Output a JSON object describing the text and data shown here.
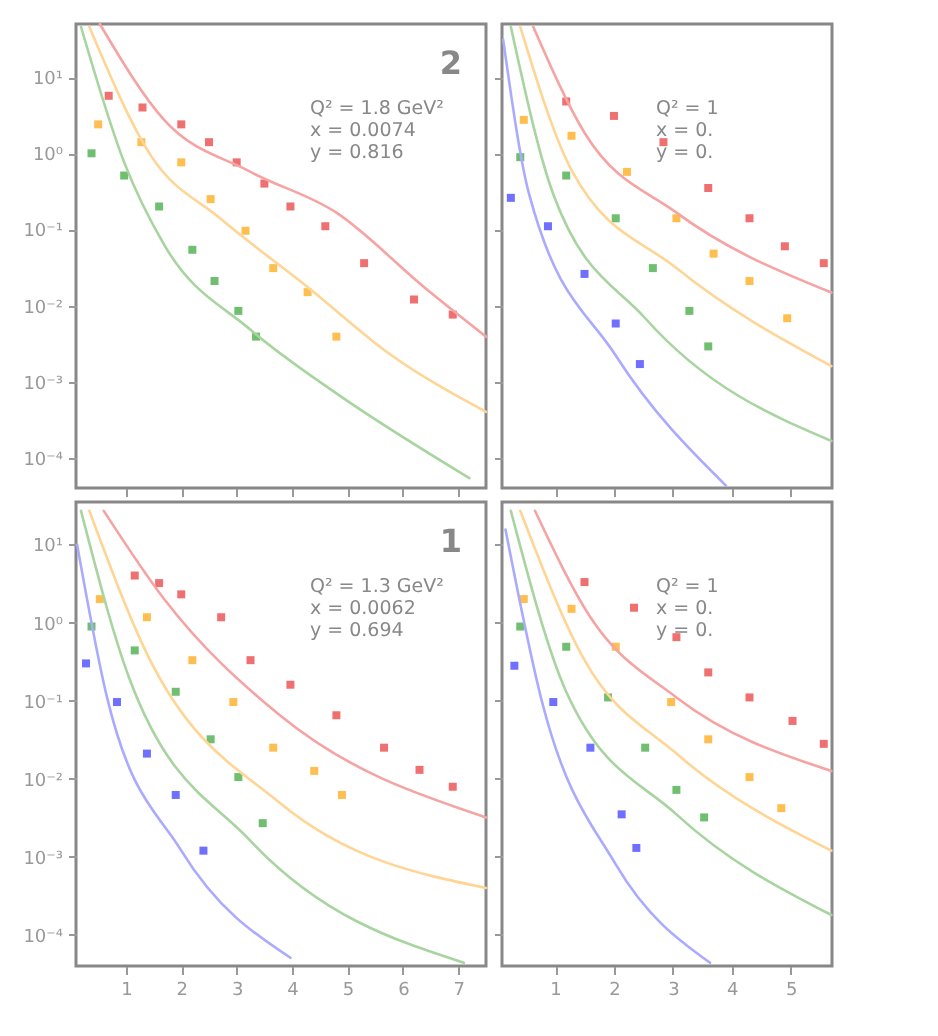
{
  "chart_data": [
    {
      "type": "scatter",
      "log": true,
      "tick_labels": "y",
      "xlim": [
        0.1,
        7.5
      ],
      "xticks": [
        {
          "value": 1,
          "label": null
        },
        {
          "value": 2,
          "label": null
        },
        {
          "value": 3,
          "label": null
        },
        {
          "value": 4,
          "label": null
        },
        {
          "value": 5,
          "label": null
        },
        {
          "value": 6,
          "label": null
        },
        {
          "value": 7,
          "label": null
        }
      ],
      "ylim": [
        4e-05,
        50
      ],
      "yticks": [
        {
          "value": 10,
          "label": "10¹"
        },
        {
          "value": 1,
          "label": "10⁰"
        },
        {
          "value": 0.1,
          "label": "10⁻¹"
        },
        {
          "value": 0.01,
          "label": "10⁻²"
        },
        {
          "value": 0.001,
          "label": "10⁻³"
        },
        {
          "value": 0.0001,
          "label": "10⁻⁴"
        }
      ],
      "annotations": [
        "2",
        "Q² = 1.8 GeV²",
        "x = 0.0074",
        "y = 0.816"
      ],
      "series": [
        {
          "marker": "square",
          "color": "#ef7070",
          "x": [
            0.69,
            1.3,
            2.0,
            2.5,
            3.0,
            3.5,
            3.97,
            4.6,
            5.3,
            6.2,
            6.9
          ],
          "values": [
            5.7,
            4.0,
            2.4,
            1.4,
            0.76,
            0.4,
            0.2,
            0.11,
            0.036,
            0.012,
            0.0076
          ]
        },
        {
          "marker": "square",
          "color": "#ffbf50",
          "x": [
            0.5,
            1.28,
            2.0,
            2.53,
            3.16,
            3.66,
            4.28,
            4.8
          ],
          "values": [
            2.4,
            1.4,
            0.76,
            0.25,
            0.096,
            0.031,
            0.015,
            0.0039
          ]
        },
        {
          "marker": "square",
          "color": "#70bf70",
          "x": [
            0.38,
            0.97,
            1.6,
            2.2,
            2.6,
            3.03,
            3.35
          ],
          "values": [
            1.0,
            0.51,
            0.2,
            0.054,
            0.021,
            0.0085,
            0.0039
          ]
        },
        {
          "type": "line",
          "color": "#f5a3a3",
          "x": [
            0.53,
            1.69,
            3.25,
            4.8,
            6.4,
            7.5
          ],
          "values": [
            50,
            2.75,
            0.57,
            0.166,
            0.017,
            0.0039
          ]
        },
        {
          "type": "line",
          "color": "#ffd595",
          "x": [
            0.34,
            1.47,
            2.7,
            4.3,
            5.8,
            7.5
          ],
          "values": [
            46,
            0.89,
            0.14,
            0.017,
            0.0022,
            0.0004
          ]
        },
        {
          "type": "line",
          "color": "#a8d4a0",
          "x": [
            0.19,
            0.97,
            1.69,
            3.25,
            4.8,
            7.2
          ],
          "values": [
            46,
            0.76,
            0.063,
            0.0048,
            0.0007,
            5.4e-05
          ]
        }
      ]
    },
    {
      "type": "scatter",
      "log": true,
      "tick_labels": false,
      "xlim": [
        0.1,
        5.7
      ],
      "xticks": [
        {
          "value": 1,
          "label": null
        },
        {
          "value": 2,
          "label": null
        },
        {
          "value": 3,
          "label": null
        },
        {
          "value": 4,
          "label": null
        },
        {
          "value": 5,
          "label": null
        }
      ],
      "ylim": [
        4e-05,
        50
      ],
      "yticks": [
        {
          "value": 10,
          "label": null
        },
        {
          "value": 1,
          "label": null
        },
        {
          "value": 0.1,
          "label": null
        },
        {
          "value": 0.01,
          "label": null
        },
        {
          "value": 0.001,
          "label": null
        },
        {
          "value": 0.0001,
          "label": null
        }
      ],
      "annotations": [
        "Q² = 1",
        "x = 0.",
        "y = 0."
      ],
      "series": [
        {
          "marker": "square",
          "color": "#ef7070",
          "x": [
            1.19,
            2.0,
            2.84,
            3.6,
            4.3,
            4.9,
            5.56
          ],
          "values": [
            4.8,
            3.1,
            1.4,
            0.35,
            0.14,
            0.06,
            0.036
          ]
        },
        {
          "marker": "square",
          "color": "#ffbf50",
          "x": [
            0.47,
            1.28,
            2.22,
            3.06,
            3.69,
            4.3,
            4.94
          ],
          "values": [
            2.75,
            1.7,
            0.57,
            0.14,
            0.048,
            0.021,
            0.0068
          ]
        },
        {
          "marker": "square",
          "color": "#70bf70",
          "x": [
            0.41,
            1.19,
            2.03,
            2.66,
            3.28,
            3.6
          ],
          "values": [
            0.89,
            0.51,
            0.14,
            0.031,
            0.0085,
            0.0029
          ]
        },
        {
          "marker": "square",
          "color": "#7070ff",
          "x": [
            0.25,
            0.88,
            1.5,
            2.03,
            2.44
          ],
          "values": [
            0.26,
            0.11,
            0.026,
            0.0058,
            0.0017
          ]
        },
        {
          "type": "line",
          "color": "#f5a3a3",
          "x": [
            0.63,
            1.5,
            3.06,
            5.69
          ],
          "values": [
            46,
            1.86,
            0.166,
            0.0148
          ]
        },
        {
          "type": "line",
          "color": "#ffd595",
          "x": [
            0.41,
            1.28,
            3.06,
            5.69
          ],
          "values": [
            46,
            0.6,
            0.031,
            0.0016
          ]
        },
        {
          "type": "line",
          "color": "#a8d4a0",
          "x": [
            0.25,
            0.97,
            2.53,
            5.69
          ],
          "values": [
            46,
            0.29,
            0.0068,
            0.000166
          ]
        },
        {
          "type": "line",
          "color": "#aaaaff",
          "x": [
            0.12,
            0.56,
            2.03,
            3.9
          ],
          "values": [
            31,
            0.29,
            0.0022,
            4.3e-05
          ]
        }
      ]
    },
    {
      "type": "scatter",
      "log": true,
      "xlim": [
        0.1,
        7.5
      ],
      "xticks": [
        1,
        2,
        3,
        4,
        5,
        6,
        7
      ],
      "ylim": [
        4e-05,
        35
      ],
      "yticks": [
        {
          "value": 10,
          "label": "10¹"
        },
        {
          "value": 1,
          "label": "10⁰"
        },
        {
          "value": 0.1,
          "label": "10⁻¹"
        },
        {
          "value": 0.01,
          "label": "10⁻²"
        },
        {
          "value": 0.001,
          "label": "10⁻³"
        },
        {
          "value": 0.0001,
          "label": "10⁻⁴"
        }
      ],
      "annotations": [
        "1",
        "Q² = 1.3 GeV²",
        "x = 0.0062",
        "y = 0.694"
      ],
      "series": [
        {
          "marker": "square",
          "color": "#ef7070",
          "x": [
            1.16,
            1.6,
            2.0,
            2.72,
            3.25,
            3.97,
            4.8,
            5.66,
            6.3,
            6.9
          ],
          "values": [
            4.0,
            3.2,
            2.3,
            1.17,
            0.33,
            0.16,
            0.065,
            0.025,
            0.013,
            0.0079
          ]
        },
        {
          "marker": "square",
          "color": "#ffbf50",
          "x": [
            0.53,
            1.38,
            2.2,
            2.94,
            3.66,
            4.4,
            4.9
          ],
          "values": [
            2.0,
            1.17,
            0.33,
            0.096,
            0.025,
            0.0126,
            0.0062
          ]
        },
        {
          "marker": "square",
          "color": "#70bf70",
          "x": [
            0.38,
            1.16,
            1.9,
            2.53,
            3.03,
            3.47
          ],
          "values": [
            0.89,
            0.44,
            0.13,
            0.032,
            0.0105,
            0.0027
          ]
        },
        {
          "marker": "square",
          "color": "#7070ff",
          "x": [
            0.28,
            0.84,
            1.38,
            1.9,
            2.4
          ],
          "values": [
            0.3,
            0.096,
            0.021,
            0.0062,
            0.0012
          ]
        },
        {
          "type": "line",
          "color": "#f5a3a3",
          "x": [
            0.6,
            1.69,
            3.78,
            7.5
          ],
          "values": [
            27,
            2.0,
            0.065,
            0.0032
          ]
        },
        {
          "type": "line",
          "color": "#ffd595",
          "x": [
            0.34,
            1.38,
            3.78,
            7.5
          ],
          "values": [
            27,
            0.4,
            0.0049,
            0.0004
          ]
        },
        {
          "type": "line",
          "color": "#a8d4a0",
          "x": [
            0.19,
            1.06,
            3.25,
            7.1
          ],
          "values": [
            27,
            0.195,
            0.0016,
            4.4e-05
          ]
        },
        {
          "type": "line",
          "color": "#aaaaff",
          "x": [
            0.12,
            0.66,
            2.0,
            3.97
          ],
          "values": [
            10,
            0.11,
            0.0012,
            5.1e-05
          ]
        }
      ]
    },
    {
      "type": "scatter",
      "log": true,
      "tick_labels": "x",
      "xlim": [
        0.1,
        5.7
      ],
      "xticks": [
        1,
        2,
        3,
        4,
        5
      ],
      "ylim": [
        4e-05,
        35
      ],
      "yticks": [
        {
          "value": 10,
          "label": null
        },
        {
          "value": 1,
          "label": null
        },
        {
          "value": 0.1,
          "label": null
        },
        {
          "value": 0.01,
          "label": null
        },
        {
          "value": 0.001,
          "label": null
        },
        {
          "value": 0.0001,
          "label": null
        }
      ],
      "annotations": [
        "Q² = 1",
        "x = 0.",
        "y = 0."
      ],
      "series": [
        {
          "marker": "square",
          "color": "#ef7070",
          "x": [
            1.5,
            2.34,
            3.06,
            3.6,
            4.3,
            5.03,
            5.56
          ],
          "values": [
            3.3,
            1.55,
            0.65,
            0.23,
            0.11,
            0.055,
            0.028
          ]
        },
        {
          "marker": "square",
          "color": "#ffbf50",
          "x": [
            0.47,
            1.28,
            2.03,
            2.97,
            3.6,
            4.3,
            4.84
          ],
          "values": [
            2.0,
            1.5,
            0.49,
            0.096,
            0.032,
            0.0105,
            0.0042
          ]
        },
        {
          "marker": "square",
          "color": "#70bf70",
          "x": [
            0.41,
            1.19,
            1.9,
            2.53,
            3.06,
            3.53
          ],
          "values": [
            0.89,
            0.49,
            0.11,
            0.025,
            0.0072,
            0.0032
          ]
        },
        {
          "marker": "square",
          "color": "#7070ff",
          "x": [
            0.31,
            0.97,
            1.6,
            2.13,
            2.38
          ],
          "values": [
            0.28,
            0.096,
            0.025,
            0.0035,
            0.0013
          ]
        },
        {
          "type": "line",
          "color": "#f5a3a3",
          "x": [
            0.66,
            1.6,
            3.06,
            5.69
          ],
          "values": [
            27,
            1.17,
            0.11,
            0.0126
          ]
        },
        {
          "type": "line",
          "color": "#ffd595",
          "x": [
            0.41,
            1.5,
            3.06,
            5.69
          ],
          "values": [
            27,
            0.33,
            0.021,
            0.0012
          ]
        },
        {
          "type": "line",
          "color": "#a8d4a0",
          "x": [
            0.25,
            1.19,
            3.06,
            5.69
          ],
          "values": [
            27,
            0.13,
            0.0035,
            0.00018
          ]
        },
        {
          "type": "line",
          "color": "#aaaaff",
          "x": [
            0.16,
            0.78,
            2.03,
            3.63
          ],
          "values": [
            15.5,
            0.096,
            0.0008,
            4.4e-05
          ]
        }
      ]
    }
  ]
}
